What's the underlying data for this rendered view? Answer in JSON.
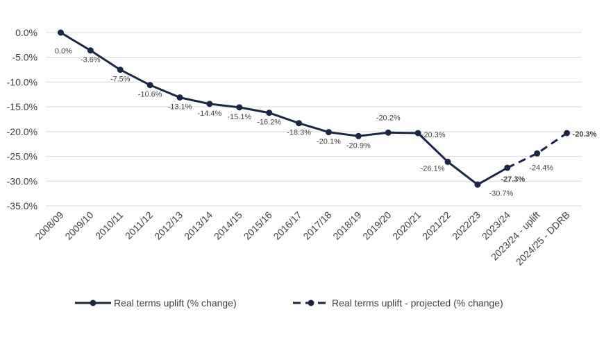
{
  "chart_data": {
    "type": "line",
    "title": "",
    "xlabel": "",
    "ylabel": "",
    "ylim": [
      -35,
      0
    ],
    "yticks": [
      0,
      -5,
      -10,
      -15,
      -20,
      -25,
      -30,
      -35
    ],
    "ytick_format": "percent_1dp",
    "grid": true,
    "legend_position": "bottom",
    "categories": [
      "2008/09",
      "2009/10",
      "2010/11",
      "2011/12",
      "2012/13",
      "2013/14",
      "2014/15",
      "2015/16",
      "2016/17",
      "2017/18",
      "2018/19",
      "2019/20",
      "2020/21",
      "2021/22",
      "2022/23",
      "2023/24",
      "2023/24 - uplift",
      "2024/25 - DDRB"
    ],
    "series": [
      {
        "name": "Real terms uplift (% change)",
        "style": "solid",
        "color": "#1a2744",
        "values": [
          0.0,
          -3.6,
          -7.5,
          -10.6,
          -13.1,
          -14.4,
          -15.1,
          -16.2,
          -18.3,
          -20.1,
          -20.9,
          -20.2,
          -20.3,
          -26.1,
          -30.7,
          -27.3,
          null,
          null
        ],
        "labels": [
          "0.0%",
          "-3.6%",
          "-7.5%",
          "-10.6%",
          "-13.1%",
          "-14.4%",
          "-15.1%",
          "-16.2%",
          "-18.3%",
          "-20.1%",
          "-20.9%",
          "-20.2%",
          "-20.3%",
          "-26.1%",
          "-30.7%",
          "-27.3%",
          "",
          ""
        ]
      },
      {
        "name": "Real terms uplift - projected (% change)",
        "style": "dashed",
        "color": "#1a2744",
        "values": [
          null,
          null,
          null,
          null,
          null,
          null,
          null,
          null,
          null,
          null,
          null,
          null,
          null,
          null,
          null,
          -27.3,
          -24.4,
          -20.3
        ],
        "labels": [
          "",
          "",
          "",
          "",
          "",
          "",
          "",
          "",
          "",
          "",
          "",
          "",
          "",
          "",
          "",
          "",
          "-24.4%",
          "-20.3%"
        ]
      }
    ],
    "highlight_color": "#e00000"
  }
}
